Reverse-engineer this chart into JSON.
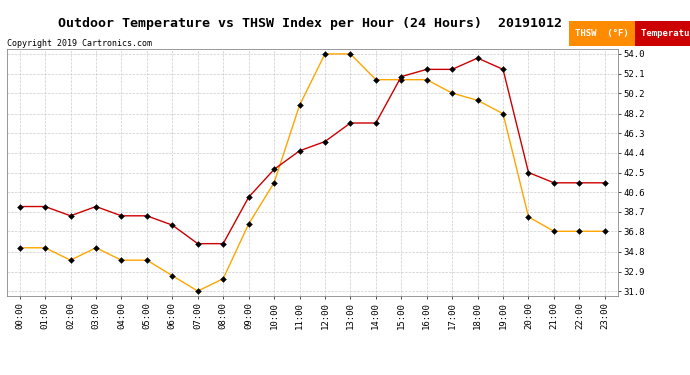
{
  "title": "Outdoor Temperature vs THSW Index per Hour (24 Hours)  20191012",
  "copyright": "Copyright 2019 Cartronics.com",
  "x_labels": [
    "00:00",
    "01:00",
    "02:00",
    "03:00",
    "04:00",
    "05:00",
    "06:00",
    "07:00",
    "08:00",
    "09:00",
    "10:00",
    "11:00",
    "12:00",
    "13:00",
    "14:00",
    "15:00",
    "16:00",
    "17:00",
    "18:00",
    "19:00",
    "20:00",
    "21:00",
    "22:00",
    "23:00"
  ],
  "temperature": [
    39.2,
    39.2,
    38.3,
    39.2,
    38.3,
    38.3,
    37.4,
    35.6,
    35.6,
    40.1,
    42.8,
    44.6,
    45.5,
    47.3,
    47.3,
    51.8,
    52.5,
    52.5,
    53.6,
    52.5,
    42.5,
    41.5,
    41.5,
    41.5
  ],
  "thsw": [
    35.2,
    35.2,
    34.0,
    35.2,
    34.0,
    34.0,
    32.5,
    31.0,
    32.2,
    37.5,
    41.5,
    49.0,
    54.0,
    54.0,
    51.5,
    51.5,
    51.5,
    50.2,
    49.5,
    48.2,
    38.2,
    36.8,
    36.8,
    36.8
  ],
  "y_ticks": [
    31.0,
    32.9,
    34.8,
    36.8,
    38.7,
    40.6,
    42.5,
    44.4,
    46.3,
    48.2,
    50.2,
    52.1,
    54.0
  ],
  "ylim_min": 30.5,
  "ylim_max": 54.5,
  "thsw_color": "#FFA500",
  "temp_color": "#CC0000",
  "grid_color": "#CCCCCC",
  "background_color": "#FFFFFF",
  "legend_thsw_bg": "#FF8C00",
  "legend_temp_bg": "#CC0000",
  "legend_thsw_label": "THSW  (°F)",
  "legend_temp_label": "Temperature  (°F)"
}
